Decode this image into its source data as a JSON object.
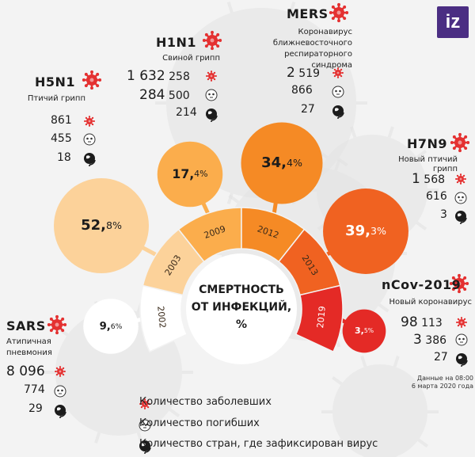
{
  "logo": "iz",
  "center_label": [
    "СМЕРТНОСТЬ",
    "ОТ ИНФЕКЦИЙ,",
    "%"
  ],
  "note": [
    "Данные на 08:00",
    "6 марта 2020 года"
  ],
  "legend": {
    "cases": "Количество заболевших",
    "deaths": "Количество погибших",
    "countries": "Количество стран, где зафиксирован вирус"
  },
  "colors": {
    "sars": "#ffffff",
    "h5n1": "#fcd29a",
    "h1n1": "#fbad4c",
    "mers": "#f58a25",
    "h7n9": "#f06221",
    "ncov": "#e42a26",
    "virus_icon": "#e43131"
  },
  "viruses": [
    {
      "id": "sars",
      "name": "SARS",
      "desc": [
        "Атипичная",
        "пневмония"
      ],
      "cases": "8 096",
      "deaths": "774",
      "countries": "29"
    },
    {
      "id": "h5n1",
      "name": "H5N1",
      "desc": [
        "Птичий грипп"
      ],
      "cases": "861",
      "deaths": "455",
      "countries": "18"
    },
    {
      "id": "h1n1",
      "name": "H1N1",
      "desc": [
        "Свиной грипп"
      ],
      "cases_big": "1 632",
      "cases_small": "258",
      "deaths_big": "284",
      "deaths_small": "500",
      "countries": "214"
    },
    {
      "id": "mers",
      "name": "MERS",
      "desc": [
        "Коронавирус",
        "ближневосточного",
        "респираторного",
        "синдрома"
      ],
      "cases_big": "2",
      "cases_small": "519",
      "deaths": "866",
      "countries": "27"
    },
    {
      "id": "h7n9",
      "name": "H7N9",
      "desc": [
        "Новый птичий грипп"
      ],
      "cases_big": "1",
      "cases_small": "568",
      "deaths": "616",
      "countries": "3"
    },
    {
      "id": "ncov",
      "name": "nCov-2019",
      "desc": [
        "Новый коронавирус"
      ],
      "cases_big": "98",
      "cases_small": "113",
      "deaths_big": "3",
      "deaths_small": "386",
      "countries": "27"
    }
  ],
  "chart_data": {
    "type": "bar",
    "title": "СМЕРТНОСТЬ ОТ ИНФЕКЦИЙ, %",
    "categories": [
      "2002",
      "2003",
      "2009",
      "2012",
      "2013",
      "2019"
    ],
    "series": [
      {
        "name": "",
        "values": [
          9.6,
          52.8,
          17.4,
          34.4,
          39.3,
          3.5
        ]
      }
    ],
    "labels_int": [
      "9,",
      "52,",
      "17,",
      "34,",
      "39,",
      "3,"
    ],
    "labels_dec": [
      "6%",
      "8%",
      "4%",
      "4%",
      "3%",
      "5%"
    ]
  }
}
